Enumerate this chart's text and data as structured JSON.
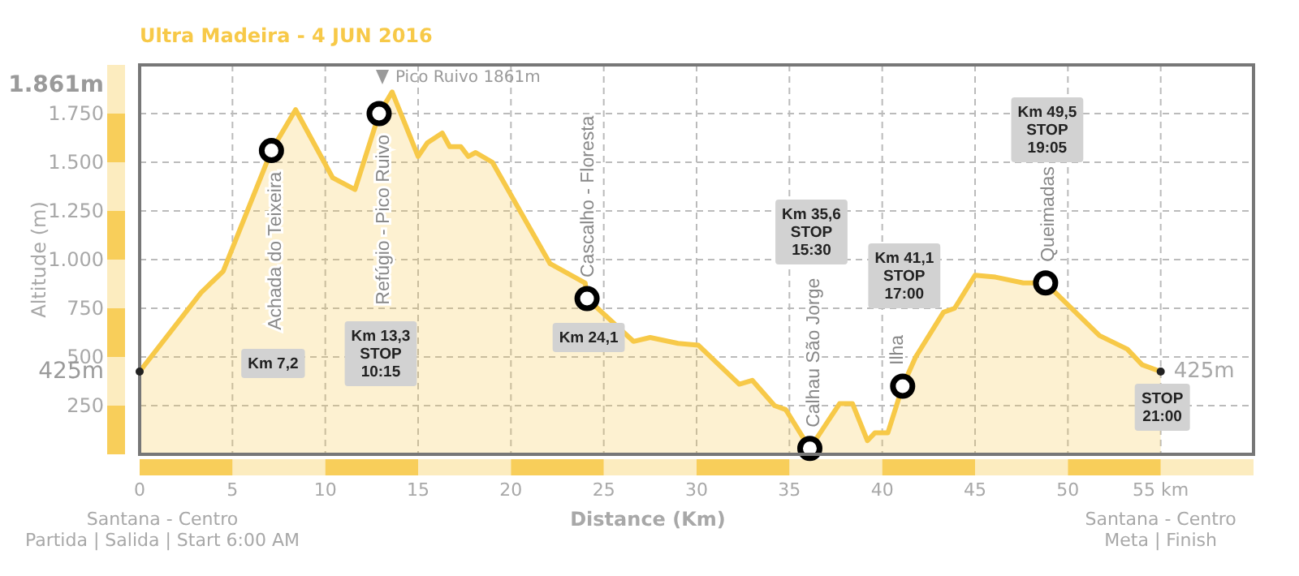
{
  "chart_data": {
    "type": "area",
    "title": "Ultra Madeira - 4 JUN 2016",
    "xlabel": "Distance (Km)",
    "ylabel": "Altitude (m)",
    "xlim": [
      0,
      60
    ],
    "ylim": [
      0,
      2000
    ],
    "xticks": [
      0,
      5,
      10,
      15,
      20,
      25,
      30,
      35,
      40,
      45,
      50,
      {
        "value": 55,
        "label": "55 km"
      }
    ],
    "yticks": [
      250,
      500,
      750,
      {
        "value": 1000,
        "label": "1.000"
      },
      {
        "value": 1250,
        "label": "1.250"
      },
      {
        "value": 1500,
        "label": "1.500"
      },
      {
        "value": 1750,
        "label": "1.750"
      }
    ],
    "grid": true,
    "series": [
      {
        "color": "#f7c948",
        "x": [
          0,
          3.3,
          4.5,
          7.1,
          8.4,
          10.4,
          11.6,
          12.9,
          13.6,
          15.0,
          15.5,
          16.3,
          16.7,
          17.3,
          17.7,
          18.1,
          19.0,
          22.1,
          24.0,
          24.1,
          26.6,
          27.5,
          29.0,
          30.1,
          32.3,
          33.0,
          34.2,
          34.8,
          36.1,
          37.7,
          38.4,
          39.2,
          39.6,
          40.3,
          41.1,
          41.8,
          43.3,
          43.9,
          45.0,
          46.1,
          47.6,
          48.8,
          51.7,
          53.2,
          54.0,
          55.0
        ],
        "values": [
          425,
          830,
          940,
          1560,
          1770,
          1420,
          1360,
          1750,
          1861,
          1530,
          1600,
          1650,
          1580,
          1580,
          1530,
          1550,
          1500,
          980,
          880,
          800,
          580,
          600,
          570,
          560,
          360,
          380,
          250,
          230,
          30,
          260,
          260,
          70,
          110,
          110,
          350,
          500,
          730,
          750,
          920,
          910,
          880,
          880,
          610,
          540,
          460,
          425
        ]
      },
      {
        "type": "scatter",
        "color": "#000000",
        "marker": "circle",
        "x": [
          7.1,
          12.9,
          24.1,
          36.1,
          41.1,
          48.8
        ],
        "values": [
          1560,
          1750,
          800,
          30,
          350,
          880
        ]
      }
    ],
    "annotations": [
      "Achada do Teixeira",
      "Refúgio - Pico Ruivo",
      "Cascalho - Floresta",
      "Calhau São Jorge",
      "Ilha",
      "Queimadas",
      "Km 7,2",
      "Km 13,3\nSTOP\n10:15",
      "Km 24,1",
      "Km 35,6\nSTOP\n15:30",
      "Km 41,1\nSTOP\n17:00",
      "Km 49,5\nSTOP\n19:05",
      "STOP\n21:00",
      "Pico Ruivo 1861m",
      "1.861m",
      "425m",
      "425m",
      "Santana - Centro",
      "Partida | Salida | Start  6:00 AM",
      "Santana - Centro",
      "Meta | Finish"
    ]
  }
}
